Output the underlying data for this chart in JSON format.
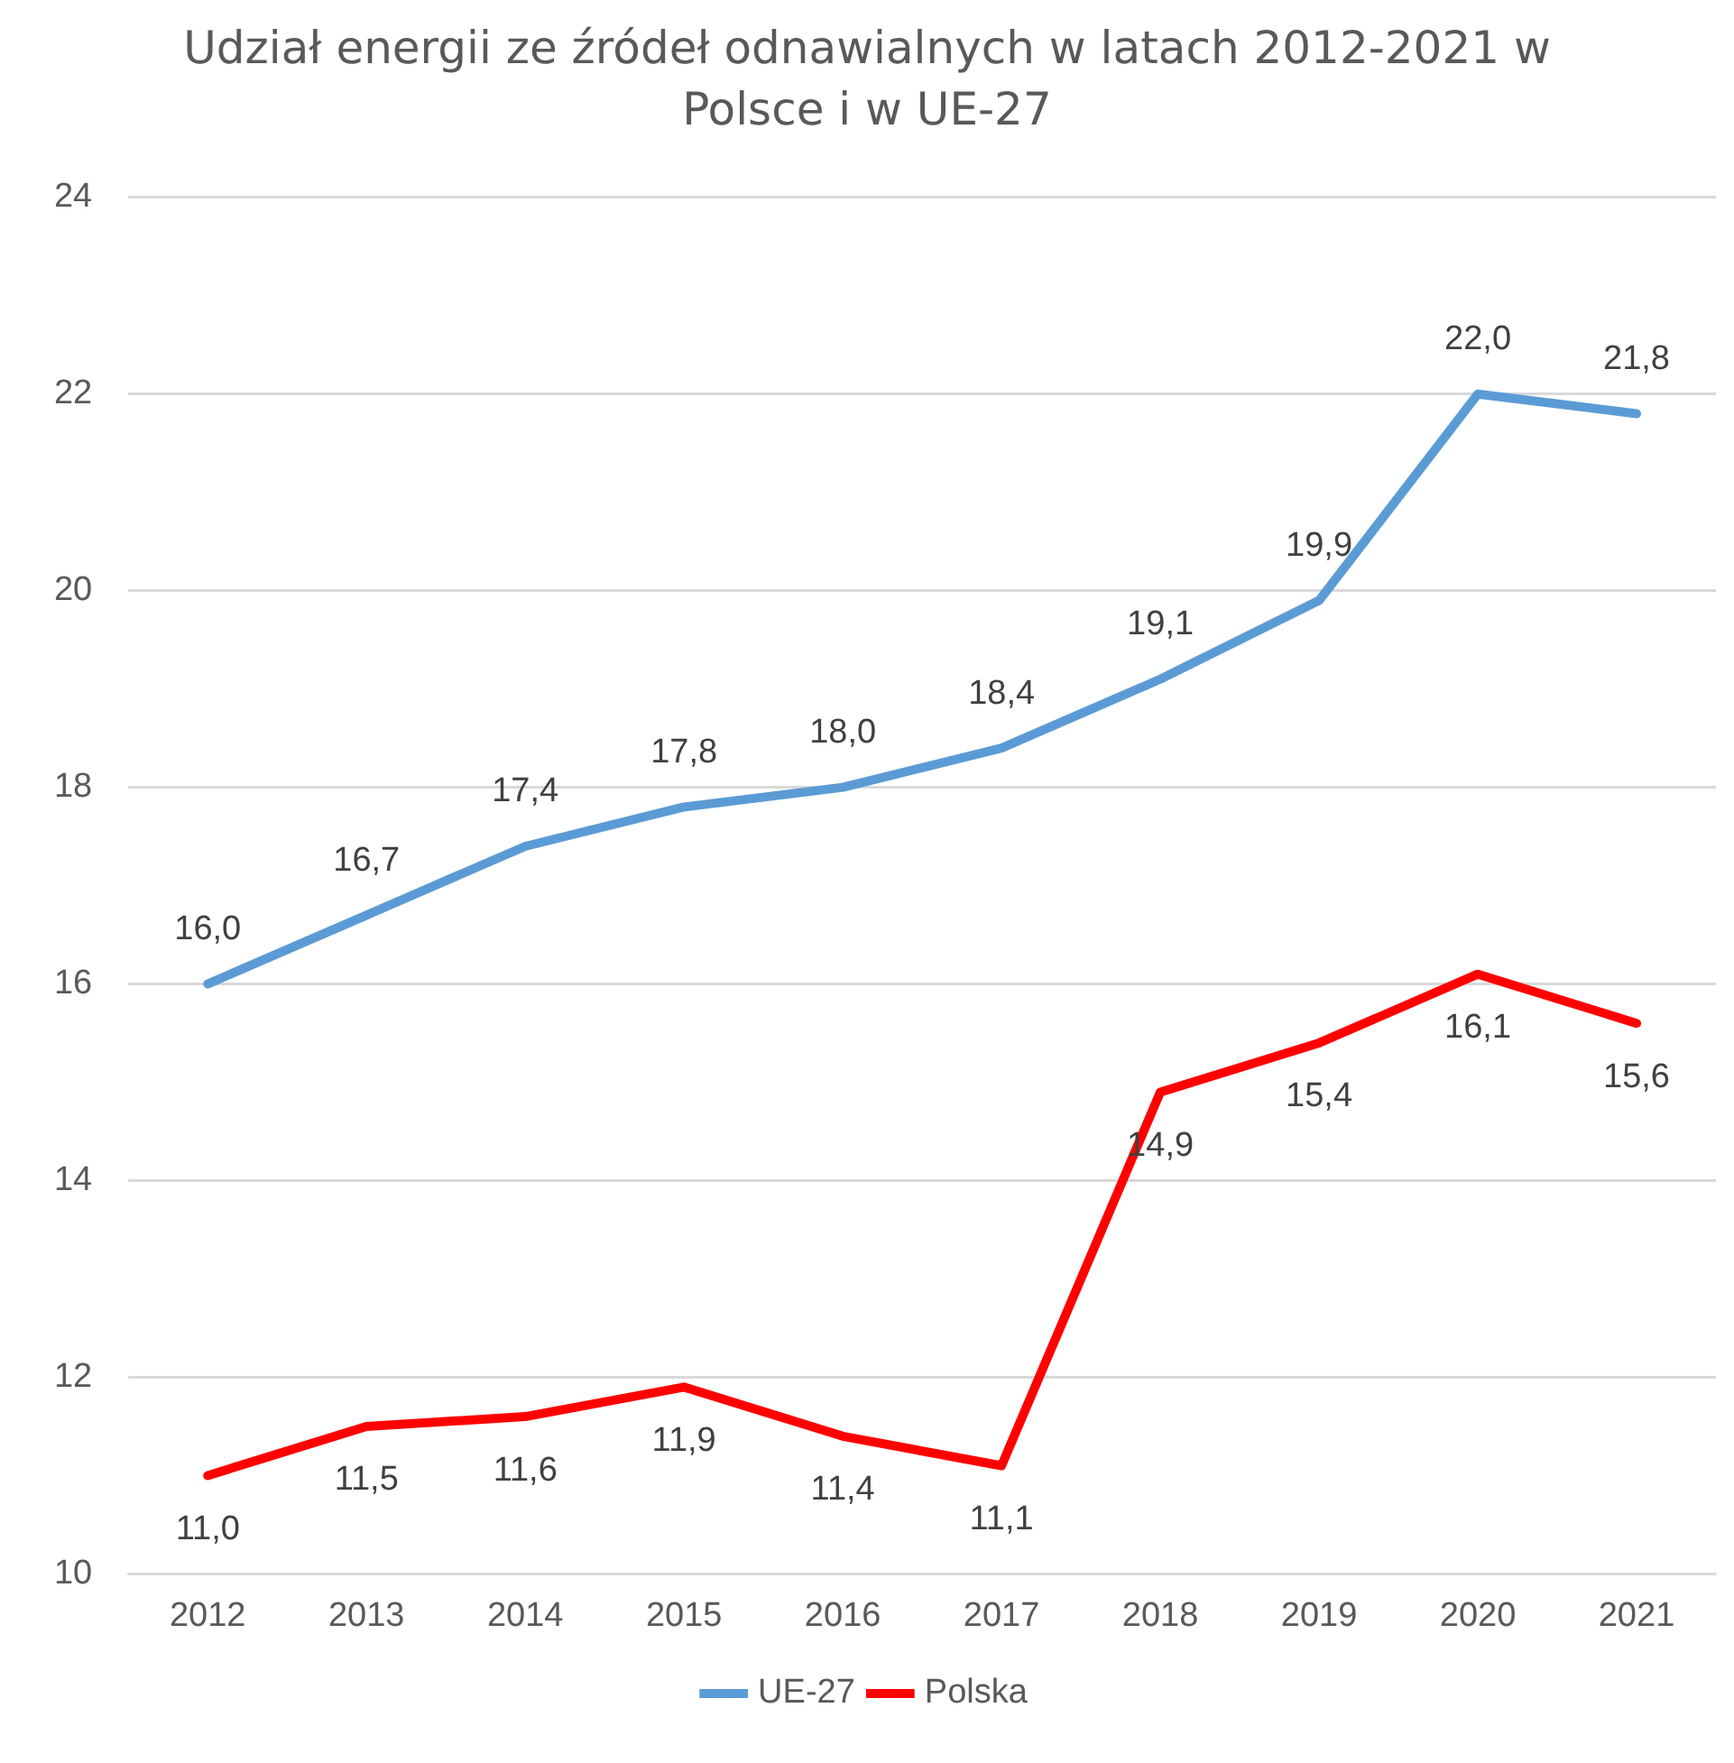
{
  "chart_data": {
    "type": "line",
    "title": "Udział energii ze źródeł odnawialnych w latach 2012-2021 w Polsce i w UE-27",
    "categories": [
      "2012",
      "2013",
      "2014",
      "2015",
      "2016",
      "2017",
      "2018",
      "2019",
      "2020",
      "2021"
    ],
    "series": [
      {
        "name": "UE-27",
        "color": "#5b9bd5",
        "values": [
          16.0,
          16.7,
          17.4,
          17.8,
          18.0,
          18.4,
          19.1,
          19.9,
          22.0,
          21.8
        ],
        "value_labels": [
          "16,0",
          "16,7",
          "17,4",
          "17,8",
          "18,0",
          "18,4",
          "19,1",
          "19,9",
          "22,0",
          "21,8"
        ]
      },
      {
        "name": "Polska",
        "color": "#ff0000",
        "values": [
          11.0,
          11.5,
          11.6,
          11.9,
          11.4,
          11.1,
          14.9,
          15.4,
          16.1,
          15.6
        ],
        "value_labels": [
          "11,0",
          "11,5",
          "11,6",
          "11,9",
          "11,4",
          "11,1",
          "14,9",
          "15,4",
          "16,1",
          "15,6"
        ]
      }
    ],
    "ylim": [
      10,
      24
    ],
    "yticks": [
      10,
      12,
      14,
      16,
      18,
      20,
      22,
      24
    ],
    "grid": "y",
    "legend": "bottom",
    "marker": "none",
    "line_style": "solid"
  }
}
